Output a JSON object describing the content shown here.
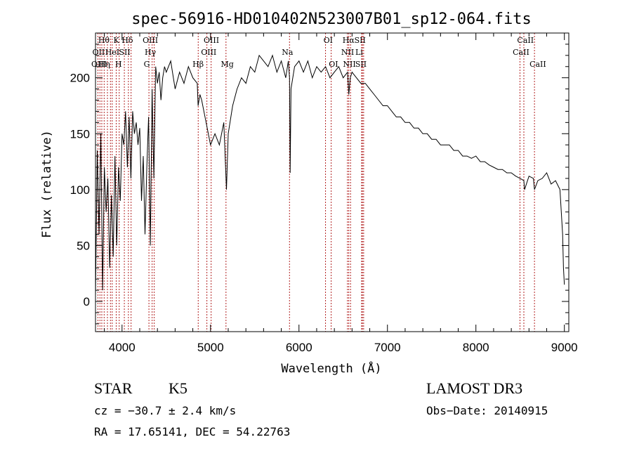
{
  "chart_data": {
    "type": "line",
    "title": "spec-56916-HD010402N523007B01_sp12-064.fits",
    "xlabel": "Wavelength (Å)",
    "ylabel": "Flux (relative)",
    "xlim": [
      3700,
      9050
    ],
    "ylim": [
      -27,
      240
    ],
    "xticks": [
      4000,
      5000,
      6000,
      7000,
      8000,
      9000
    ],
    "yticks": [
      0,
      50,
      100,
      150,
      200
    ],
    "series": [
      {
        "name": "flux",
        "x": [
          3700,
          3720,
          3740,
          3760,
          3780,
          3800,
          3820,
          3840,
          3860,
          3880,
          3900,
          3920,
          3940,
          3960,
          3980,
          4000,
          4020,
          4040,
          4060,
          4080,
          4100,
          4120,
          4140,
          4160,
          4180,
          4200,
          4220,
          4240,
          4260,
          4280,
          4300,
          4320,
          4340,
          4360,
          4380,
          4400,
          4420,
          4440,
          4460,
          4480,
          4500,
          4550,
          4600,
          4650,
          4700,
          4750,
          4800,
          4850,
          4860,
          4880,
          4900,
          4950,
          5000,
          5050,
          5100,
          5150,
          5180,
          5200,
          5250,
          5300,
          5350,
          5400,
          5450,
          5500,
          5550,
          5600,
          5650,
          5700,
          5750,
          5800,
          5850,
          5880,
          5893,
          5900,
          5910,
          5950,
          6000,
          6050,
          6100,
          6150,
          6200,
          6250,
          6300,
          6350,
          6400,
          6450,
          6500,
          6550,
          6563,
          6580,
          6600,
          6650,
          6700,
          6750,
          6800,
          6850,
          6900,
          6950,
          7000,
          7050,
          7100,
          7150,
          7200,
          7250,
          7300,
          7350,
          7400,
          7450,
          7500,
          7550,
          7600,
          7650,
          7700,
          7750,
          7800,
          7850,
          7900,
          7950,
          8000,
          8050,
          8100,
          8150,
          8200,
          8250,
          8300,
          8350,
          8400,
          8450,
          8500,
          8542,
          8550,
          8600,
          8650,
          8662,
          8700,
          8750,
          8800,
          8850,
          8900,
          8950,
          8980,
          8990,
          9000
        ],
        "y": [
          5,
          135,
          60,
          150,
          10,
          120,
          80,
          110,
          30,
          95,
          40,
          130,
          50,
          120,
          90,
          150,
          140,
          170,
          120,
          165,
          110,
          170,
          150,
          160,
          140,
          155,
          90,
          130,
          60,
          120,
          165,
          50,
          190,
          110,
          210,
          195,
          205,
          180,
          200,
          210,
          205,
          215,
          190,
          205,
          195,
          210,
          200,
          195,
          175,
          185,
          180,
          160,
          140,
          150,
          140,
          160,
          100,
          150,
          175,
          190,
          200,
          195,
          210,
          205,
          220,
          215,
          210,
          220,
          205,
          215,
          200,
          215,
          200,
          115,
          190,
          210,
          215,
          205,
          215,
          200,
          210,
          205,
          210,
          200,
          205,
          210,
          200,
          205,
          185,
          200,
          205,
          200,
          195,
          195,
          190,
          185,
          180,
          175,
          175,
          170,
          165,
          165,
          160,
          160,
          155,
          155,
          150,
          150,
          145,
          145,
          140,
          140,
          140,
          135,
          135,
          130,
          130,
          128,
          130,
          125,
          125,
          122,
          120,
          118,
          118,
          115,
          115,
          112,
          110,
          108,
          100,
          112,
          110,
          100,
          108,
          110,
          115,
          105,
          108,
          100,
          60,
          30,
          15
        ]
      }
    ],
    "lines": [
      {
        "w": 3727,
        "label": "OII"
      },
      {
        "w": 3750,
        "label": "OIII"
      },
      {
        "w": 3771,
        "label": ""
      },
      {
        "w": 3798,
        "label": ""
      },
      {
        "w": 3835,
        "label": "Hθ"
      },
      {
        "w": 3869,
        "label": ""
      },
      {
        "w": 3889,
        "label": "Hη"
      },
      {
        "w": 3934,
        "label": "K"
      },
      {
        "w": 3968,
        "label": "H"
      },
      {
        "w": 4026,
        "label": "HeI"
      },
      {
        "w": 4072,
        "label": "SII"
      },
      {
        "w": 4102,
        "label": "Hδ"
      },
      {
        "w": 4304,
        "label": "G"
      },
      {
        "w": 4340,
        "label": "Hγ"
      },
      {
        "w": 4363,
        "label": "OIII"
      },
      {
        "w": 4861,
        "label": "Hβ"
      },
      {
        "w": 4959,
        "label": "OIII"
      },
      {
        "w": 5007,
        "label": "OIII"
      },
      {
        "w": 5175,
        "label": "Mg"
      },
      {
        "w": 5893,
        "label": "Na"
      },
      {
        "w": 6300,
        "label": "OI"
      },
      {
        "w": 6364,
        "label": "OI"
      },
      {
        "w": 6548,
        "label": "NII"
      },
      {
        "w": 6563,
        "label": "Hα"
      },
      {
        "w": 6583,
        "label": "NII"
      },
      {
        "w": 6708,
        "label": "Li"
      },
      {
        "w": 6717,
        "label": "SII"
      },
      {
        "w": 6731,
        "label": "SII"
      },
      {
        "w": 8498,
        "label": "CaII"
      },
      {
        "w": 8542,
        "label": "CaII"
      },
      {
        "w": 8662,
        "label": "CaII"
      }
    ],
    "line_labels": [
      {
        "text": "Hθ",
        "w": 3795,
        "row": 1
      },
      {
        "text": "K",
        "w": 3935,
        "row": 1
      },
      {
        "text": "Hδ",
        "w": 4060,
        "row": 1
      },
      {
        "text": "OIII",
        "w": 4320,
        "row": 1
      },
      {
        "text": "OIII",
        "w": 5010,
        "row": 1
      },
      {
        "text": "OI",
        "w": 6330,
        "row": 1
      },
      {
        "text": "Hα",
        "w": 6560,
        "row": 1
      },
      {
        "text": "SII",
        "w": 6690,
        "row": 1
      },
      {
        "text": "CaII",
        "w": 8560,
        "row": 1
      },
      {
        "text": "OII",
        "w": 3735,
        "row": 2
      },
      {
        "text": "HeI",
        "w": 3890,
        "row": 2
      },
      {
        "text": "SII",
        "w": 4030,
        "row": 2
      },
      {
        "text": "Hγ",
        "w": 4320,
        "row": 2
      },
      {
        "text": "OIII",
        "w": 4980,
        "row": 2
      },
      {
        "text": "Na",
        "w": 5870,
        "row": 2
      },
      {
        "text": "NII",
        "w": 6550,
        "row": 2
      },
      {
        "text": "Li",
        "w": 6680,
        "row": 2
      },
      {
        "text": "CaII",
        "w": 8510,
        "row": 2
      },
      {
        "text": "OIII",
        "w": 3740,
        "row": 3
      },
      {
        "text": "Hη",
        "w": 3800,
        "row": 3
      },
      {
        "text": "H",
        "w": 3960,
        "row": 3
      },
      {
        "text": "G",
        "w": 4280,
        "row": 3
      },
      {
        "text": "Hβ",
        "w": 4860,
        "row": 3
      },
      {
        "text": "Mg",
        "w": 5190,
        "row": 3
      },
      {
        "text": "OI",
        "w": 6390,
        "row": 3
      },
      {
        "text": "NII",
        "w": 6570,
        "row": 3
      },
      {
        "text": "SII",
        "w": 6700,
        "row": 3
      },
      {
        "text": "CaII",
        "w": 8700,
        "row": 3
      }
    ]
  },
  "info": {
    "object_class": "STAR",
    "subclass": "K5",
    "survey": "LAMOST DR3",
    "cz": "cz = −30.7 ± 2.4 km/s",
    "obs_date": "Obs−Date: 20140915",
    "coords": "RA =  17.65141, DEC =  54.22763"
  }
}
